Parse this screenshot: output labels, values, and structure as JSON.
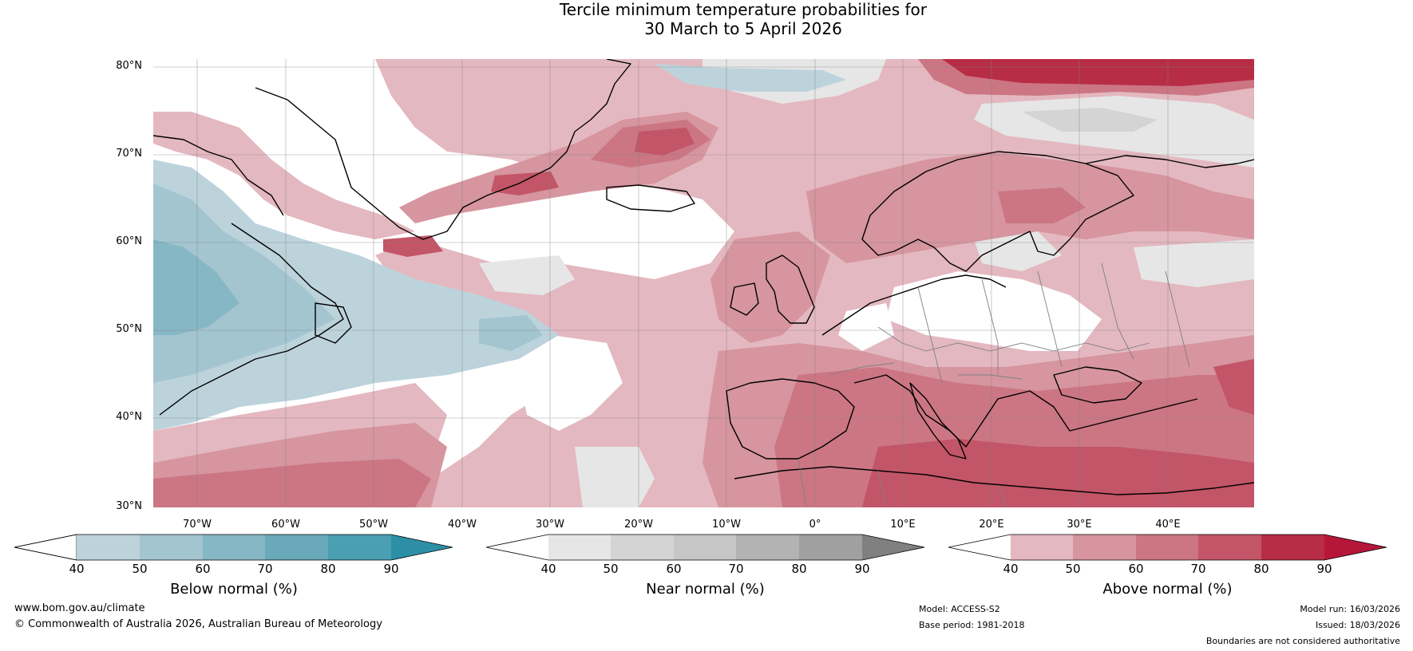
{
  "title": {
    "line1": "Tercile minimum temperature probabilities for",
    "line2": "30 March to 5 April 2026"
  },
  "map": {
    "lat_ticks": [
      "80°N",
      "70°N",
      "60°N",
      "50°N",
      "40°N",
      "30°N"
    ],
    "lon_ticks": [
      "70°W",
      "60°W",
      "50°W",
      "40°W",
      "30°W",
      "20°W",
      "10°W",
      "0°",
      "10°E",
      "20°E",
      "30°E",
      "40°E"
    ],
    "lat_values": [
      80,
      70,
      60,
      50,
      40,
      30
    ],
    "lon_values": [
      -70,
      -60,
      -50,
      -40,
      -30,
      -20,
      -10,
      0,
      10,
      20,
      30,
      40
    ],
    "lon_range": [
      -75,
      50
    ],
    "lat_range": [
      30,
      80
    ]
  },
  "colorbars": [
    {
      "label": "Below normal (%)",
      "ticks": [
        "40",
        "50",
        "60",
        "70",
        "80",
        "90"
      ],
      "colors": [
        "#ffffff",
        "#bcd3dc",
        "#a3c5d0",
        "#86b7c4",
        "#6aa9b9",
        "#4a9fb3",
        "#2c8fa6"
      ]
    },
    {
      "label": "Near normal (%)",
      "ticks": [
        "40",
        "50",
        "60",
        "70",
        "80",
        "90"
      ],
      "colors": [
        "#ffffff",
        "#e6e6e6",
        "#d4d4d4",
        "#c6c6c6",
        "#b3b3b3",
        "#a0a0a0",
        "#808080"
      ]
    },
    {
      "label": "Above normal (%)",
      "ticks": [
        "40",
        "50",
        "60",
        "70",
        "80",
        "90"
      ],
      "colors": [
        "#ffffff",
        "#e4b8c0",
        "#d6959f",
        "#cc7683",
        "#c25567",
        "#b72d45",
        "#b5163a"
      ]
    }
  ],
  "footer": {
    "website": "www.bom.gov.au/climate",
    "copyright": "© Commonwealth of Australia 2026, Australian Bureau of Meteorology",
    "model": "Model: ACCESS-S2",
    "base_period": "Base period: 1981-2018",
    "model_run": "Model run: 16/03/2026",
    "issued": "Issued: 18/03/2026",
    "disclaimer": "Boundaries are not considered authoritative"
  }
}
